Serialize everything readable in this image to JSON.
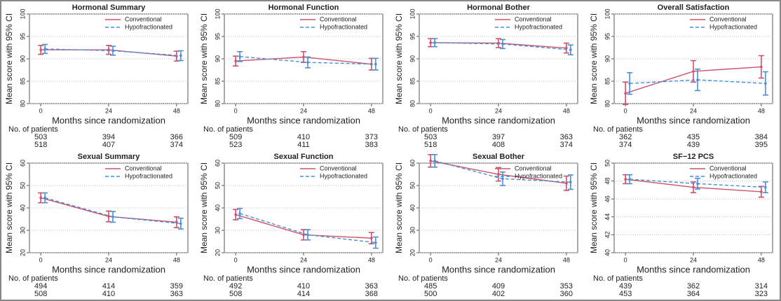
{
  "chart_data": [
    {
      "type": "line",
      "title": "Hormonal Summary",
      "x_label": "Months since randomization",
      "y_label": "Mean score with 95% CI",
      "x": [
        0,
        24,
        48
      ],
      "xlim": [
        -4,
        52
      ],
      "xticks": [
        0,
        24,
        48
      ],
      "ylim": [
        80,
        100
      ],
      "yticks": [
        80,
        85,
        90,
        95,
        100
      ],
      "grid": true,
      "legend": "top-right",
      "patients_label": "No. of patients",
      "series": [
        {
          "name": "Conventional",
          "color": "#d0506a",
          "dashed": false,
          "values": [
            92,
            92,
            90.6
          ],
          "errors": [
            1,
            1,
            1.1
          ],
          "patients": [
            503,
            394,
            366
          ]
        },
        {
          "name": "Hypofractionated",
          "color": "#4a8fd6",
          "dashed": true,
          "values": [
            92.2,
            91.8,
            90.7
          ],
          "errors": [
            1,
            1,
            1.1
          ],
          "patients": [
            518,
            407,
            374
          ]
        }
      ]
    },
    {
      "type": "line",
      "title": "Hormonal Function",
      "x_label": "Months since randomization",
      "y_label": "Mean score with 95% CI",
      "x": [
        0,
        24,
        48
      ],
      "xlim": [
        -4,
        52
      ],
      "xticks": [
        0,
        24,
        48
      ],
      "ylim": [
        80,
        100
      ],
      "yticks": [
        80,
        85,
        90,
        95,
        100
      ],
      "grid": true,
      "legend": "top-right",
      "patients_label": "No. of patients",
      "series": [
        {
          "name": "Conventional",
          "color": "#d0506a",
          "dashed": false,
          "values": [
            89.5,
            90.4,
            88.8
          ],
          "errors": [
            1.1,
            1.2,
            1.3
          ],
          "patients": [
            509,
            410,
            373
          ]
        },
        {
          "name": "Hypofractionated",
          "color": "#4a8fd6",
          "dashed": true,
          "values": [
            90.5,
            89.2,
            88.8
          ],
          "errors": [
            1.1,
            1.2,
            1.3
          ],
          "patients": [
            523,
            411,
            383
          ]
        }
      ]
    },
    {
      "type": "line",
      "title": "Hormonal Bother",
      "x_label": "Months since randomization",
      "y_label": "Mean score with 95% CI",
      "x": [
        0,
        24,
        48
      ],
      "xlim": [
        -4,
        52
      ],
      "xticks": [
        0,
        24,
        48
      ],
      "ylim": [
        80,
        100
      ],
      "yticks": [
        80,
        85,
        90,
        95,
        100
      ],
      "grid": true,
      "legend": "top-right",
      "patients_label": "No. of patients",
      "series": [
        {
          "name": "Conventional",
          "color": "#d0506a",
          "dashed": false,
          "values": [
            93.6,
            93.5,
            92.4
          ],
          "errors": [
            0.9,
            1,
            1.1
          ],
          "patients": [
            503,
            397,
            363
          ]
        },
        {
          "name": "Hypofractionated",
          "color": "#4a8fd6",
          "dashed": true,
          "values": [
            93.6,
            93.3,
            92
          ],
          "errors": [
            0.9,
            1,
            1.1
          ],
          "patients": [
            518,
            408,
            374
          ]
        }
      ]
    },
    {
      "type": "line",
      "title": "Overall Satisfaction",
      "x_label": "Months since randomization",
      "y_label": "Mean score with 95% CI",
      "x": [
        0,
        24,
        48
      ],
      "xlim": [
        -4,
        52
      ],
      "xticks": [
        0,
        24,
        48
      ],
      "ylim": [
        80,
        100
      ],
      "yticks": [
        80,
        85,
        90,
        95,
        100
      ],
      "grid": true,
      "legend": "top-right",
      "patients_label": "No. of patients",
      "series": [
        {
          "name": "Conventional",
          "color": "#d0506a",
          "dashed": false,
          "values": [
            82.3,
            87.2,
            88.2
          ],
          "errors": [
            2.5,
            2.4,
            2.5
          ],
          "patients": [
            362,
            435,
            384
          ]
        },
        {
          "name": "Hypofractionated",
          "color": "#4a8fd6",
          "dashed": true,
          "values": [
            84.5,
            85.3,
            84.5
          ],
          "errors": [
            2.4,
            2.4,
            2.6
          ],
          "patients": [
            374,
            439,
            395
          ]
        }
      ]
    },
    {
      "type": "line",
      "title": "Sexual Summary",
      "x_label": "Months since randomization",
      "y_label": "Mean score with 95% CI",
      "x": [
        0,
        24,
        48
      ],
      "xlim": [
        -4,
        52
      ],
      "xticks": [
        0,
        24,
        48
      ],
      "ylim": [
        20,
        60
      ],
      "yticks": [
        20,
        30,
        40,
        50,
        60
      ],
      "grid": true,
      "legend": "top-right",
      "patients_label": "No. of patients",
      "series": [
        {
          "name": "Conventional",
          "color": "#d0506a",
          "dashed": false,
          "values": [
            44.5,
            36.2,
            33.6
          ],
          "errors": [
            2.2,
            2.4,
            2.4
          ],
          "patients": [
            494,
            414,
            359
          ]
        },
        {
          "name": "Hypofractionated",
          "color": "#4a8fd6",
          "dashed": true,
          "values": [
            44.5,
            36,
            33
          ],
          "errors": [
            2.2,
            2.4,
            2.4
          ],
          "patients": [
            508,
            410,
            363
          ]
        }
      ]
    },
    {
      "type": "line",
      "title": "Sexual Function",
      "x_label": "Months since randomization",
      "y_label": "Mean score with 95% CI",
      "x": [
        0,
        24,
        48
      ],
      "xlim": [
        -4,
        52
      ],
      "xticks": [
        0,
        24,
        48
      ],
      "ylim": [
        20,
        60
      ],
      "yticks": [
        20,
        30,
        40,
        50,
        60
      ],
      "grid": true,
      "legend": "top-right",
      "patients_label": "No. of patients",
      "series": [
        {
          "name": "Conventional",
          "color": "#d0506a",
          "dashed": false,
          "values": [
            37,
            28,
            26.5
          ],
          "errors": [
            2.3,
            2.3,
            2.5
          ],
          "patients": [
            492,
            410,
            363
          ]
        },
        {
          "name": "Hypofractionated",
          "color": "#4a8fd6",
          "dashed": true,
          "values": [
            37.5,
            28,
            24.5
          ],
          "errors": [
            2.3,
            2.3,
            2.5
          ],
          "patients": [
            508,
            414,
            368
          ]
        }
      ]
    },
    {
      "type": "line",
      "title": "Sexual Bother",
      "x_label": "Months since randomization",
      "y_label": "Mean score with 95% CI",
      "x": [
        0,
        24,
        48
      ],
      "xlim": [
        -4,
        52
      ],
      "xticks": [
        0,
        24,
        48
      ],
      "ylim": [
        20,
        60
      ],
      "yticks": [
        20,
        30,
        40,
        50,
        60
      ],
      "grid": true,
      "legend": "top-right",
      "patients_label": "No. of patients",
      "series": [
        {
          "name": "Conventional",
          "color": "#d0506a",
          "dashed": false,
          "values": [
            61,
            55,
            51
          ],
          "errors": [
            2.8,
            3,
            3.2
          ],
          "patients": [
            485,
            409,
            353
          ]
        },
        {
          "name": "Hypofractionated",
          "color": "#4a8fd6",
          "dashed": true,
          "values": [
            61,
            53,
            51.5
          ],
          "errors": [
            2.8,
            3,
            3.2
          ],
          "patients": [
            500,
            402,
            360
          ]
        }
      ]
    },
    {
      "type": "line",
      "title": "SF−12 PCS",
      "x_label": "Months since randomization",
      "y_label": "Mean score with 95% CI",
      "x": [
        0,
        24,
        48
      ],
      "xlim": [
        -4,
        52
      ],
      "xticks": [
        0,
        24,
        48
      ],
      "ylim": [
        40,
        50
      ],
      "yticks": [
        40,
        42,
        44,
        46,
        48,
        50
      ],
      "grid": true,
      "legend": "top-right",
      "patients_label": "No. of patients",
      "series": [
        {
          "name": "Conventional",
          "color": "#d0506a",
          "dashed": false,
          "values": [
            48.2,
            47.3,
            46.8
          ],
          "errors": [
            0.5,
            0.6,
            0.6
          ],
          "patients": [
            439,
            362,
            314
          ]
        },
        {
          "name": "Hypofractionated",
          "color": "#4a8fd6",
          "dashed": true,
          "values": [
            48.2,
            47.7,
            47.3
          ],
          "errors": [
            0.5,
            0.6,
            0.6
          ],
          "patients": [
            453,
            364,
            323
          ]
        }
      ]
    }
  ]
}
